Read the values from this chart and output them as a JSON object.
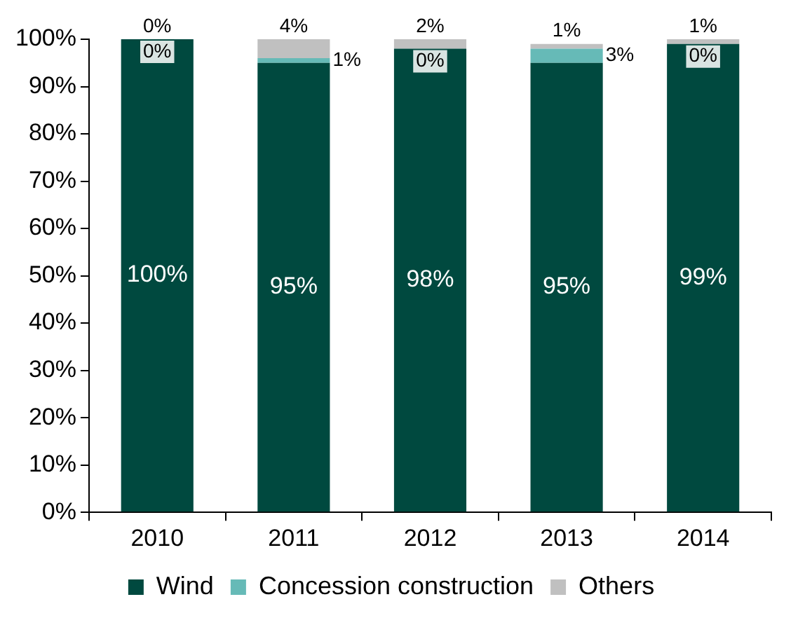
{
  "chart_data": {
    "type": "bar",
    "stacked": true,
    "categories": [
      "2010",
      "2011",
      "2012",
      "2013",
      "2014"
    ],
    "series": [
      {
        "name": "Wind",
        "color": "#00493f",
        "values": [
          100,
          95,
          98,
          95,
          99
        ],
        "value_labels": [
          "100%",
          "95%",
          "98%",
          "95%",
          "99%"
        ]
      },
      {
        "name": "Concession construction",
        "color": "#66bab7",
        "values": [
          0,
          1,
          0,
          3,
          0
        ],
        "value_labels": [
          "0%",
          "1%",
          "0%",
          "3%",
          "0%"
        ]
      },
      {
        "name": "Others",
        "color": "#c0c0c0",
        "values": [
          0,
          4,
          2,
          1,
          1
        ],
        "value_labels": [
          "0%",
          "4%",
          "2%",
          "1%",
          "1%"
        ]
      }
    ],
    "ylim": [
      0,
      100
    ],
    "yticks": [
      {
        "value": 0,
        "label": "0%"
      },
      {
        "value": 10,
        "label": "10%"
      },
      {
        "value": 20,
        "label": "20%"
      },
      {
        "value": 30,
        "label": "30%"
      },
      {
        "value": 40,
        "label": "40%"
      },
      {
        "value": 50,
        "label": "50%"
      },
      {
        "value": 60,
        "label": "60%"
      },
      {
        "value": 70,
        "label": "70%"
      },
      {
        "value": 80,
        "label": "80%"
      },
      {
        "value": 90,
        "label": "90%"
      },
      {
        "value": 100,
        "label": "100%"
      }
    ],
    "grid": false,
    "legend": "bottom"
  }
}
